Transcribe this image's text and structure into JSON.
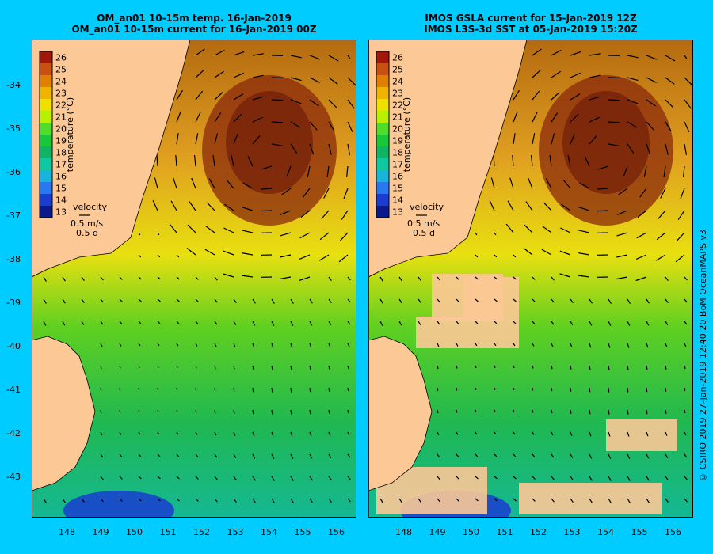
{
  "left_panel": {
    "title_line1": "OM_an01 10-15m temp. 16-Jan-2019",
    "title_line2": "OM_an01 10-15m current for 16-Jan-2019 00Z",
    "show_lat_labels": true
  },
  "right_panel": {
    "title_line1": "IMOS GSLA current for 15-Jan-2019 12Z",
    "title_line2": "IMOS L3S-3d SST at 05-Jan-2019 15:20Z",
    "show_lat_labels": false
  },
  "colorbar": {
    "ticks": [
      "13",
      "14",
      "15",
      "16",
      "17",
      "18",
      "19",
      "20",
      "21",
      "22",
      "23",
      "24",
      "25",
      "26"
    ],
    "label": "temperature (°C)",
    "colors": [
      "#0a1a8c",
      "#1a3cd0",
      "#2a78f0",
      "#19b4dc",
      "#0fc8a0",
      "#10b464",
      "#18c838",
      "#50dc28",
      "#b8f000",
      "#f0e000",
      "#f0b400",
      "#e08000",
      "#c85010",
      "#a01808"
    ]
  },
  "velocity_key": {
    "title": "velocity",
    "speed": "0.5 m/s",
    "duration": "0.5 d"
  },
  "x_ticks": [
    "148",
    "149",
    "150",
    "151",
    "152",
    "153",
    "154",
    "155",
    "156"
  ],
  "y_ticks": [
    "-34",
    "-35",
    "-36",
    "-37",
    "-38",
    "-39",
    "-40",
    "-41",
    "-42",
    "-43"
  ],
  "credit": "© CSIRO 2019  27-Jan-2019 12:40:20 BoM OceanMAPS v3",
  "colors": {
    "background": "#00ccff",
    "land": "#fcc896",
    "arrow": "#000000",
    "gap": "#fcc896"
  }
}
